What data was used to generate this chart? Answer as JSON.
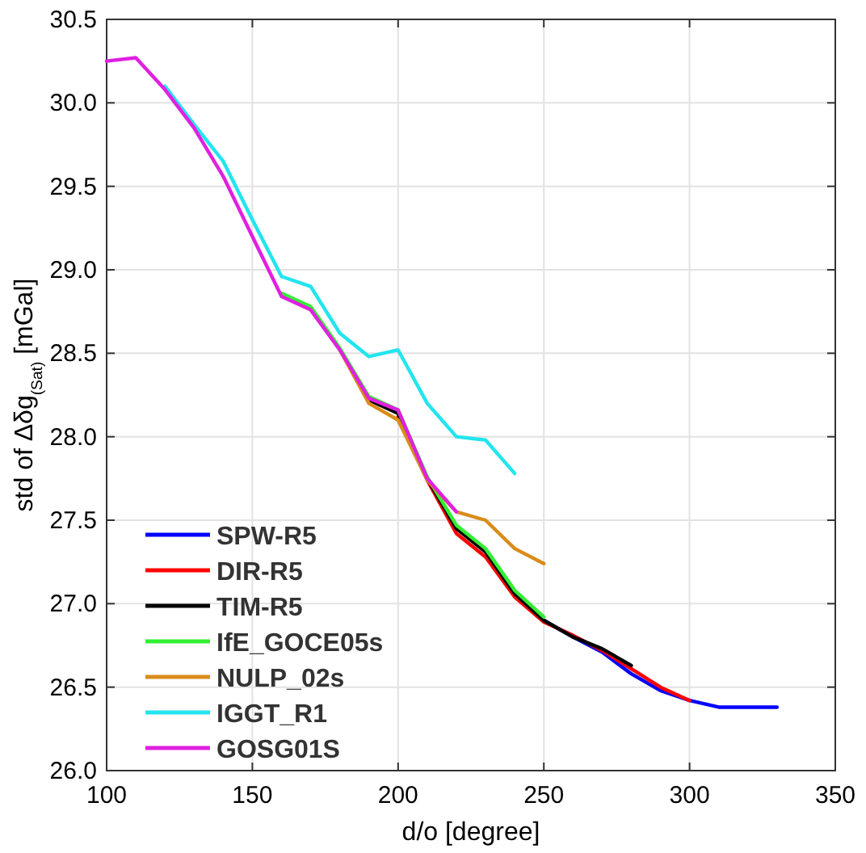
{
  "chart_data": {
    "type": "line",
    "xlabel": "d/o [degree]",
    "ylabel": "std of Δδg$_{(Sat)}$ [mGal]",
    "xlim": [
      100,
      350
    ],
    "ylim": [
      26,
      30.5
    ],
    "xticks": [
      100,
      150,
      200,
      250,
      300,
      350
    ],
    "yticks": [
      {
        "value": 26,
        "label": "26.0"
      },
      26.5,
      {
        "value": 27,
        "label": "27.0"
      },
      27.5,
      {
        "value": 28,
        "label": "28.0"
      },
      28.5,
      {
        "value": 29,
        "label": "29.0"
      },
      29.5,
      {
        "value": 30,
        "label": "30.0"
      },
      30.5
    ],
    "grid": true,
    "legend": "bottom left",
    "line_style": "solid",
    "marker": "none",
    "series": [
      {
        "name": "SPW-R5",
        "color": "#0000ff",
        "x": [
          250,
          260,
          270,
          280,
          290,
          300,
          310,
          320,
          330
        ],
        "values": [
          26.9,
          26.8,
          26.71,
          26.58,
          26.48,
          26.42,
          26.38,
          26.38,
          26.38
        ]
      },
      {
        "name": "DIR-R5",
        "color": "#ff0000",
        "x": [
          200,
          210,
          220,
          230,
          240,
          250,
          260,
          270,
          280,
          290,
          300
        ],
        "values": [
          28.12,
          27.74,
          27.42,
          27.28,
          27.04,
          26.89,
          26.81,
          26.72,
          26.61,
          26.5,
          26.42
        ]
      },
      {
        "name": "TIM-R5",
        "color": "#000000",
        "x": [
          190,
          200,
          210,
          220,
          230,
          240,
          250,
          260,
          270,
          280
        ],
        "values": [
          28.22,
          28.14,
          27.75,
          27.45,
          27.31,
          27.06,
          26.9,
          26.8,
          26.73,
          26.63
        ]
      },
      {
        "name": "IfE_GOCE05s",
        "color": "#33ee33",
        "x": [
          160,
          170,
          180,
          190,
          200,
          210,
          220,
          230,
          240,
          250
        ],
        "values": [
          28.86,
          28.78,
          28.53,
          28.24,
          28.16,
          27.76,
          27.47,
          27.33,
          27.08,
          26.92
        ]
      },
      {
        "name": "NULP_02s",
        "color": "#d98c1a",
        "x": [
          180,
          190,
          200,
          210,
          220,
          230,
          240,
          250
        ],
        "values": [
          28.52,
          28.2,
          28.1,
          27.74,
          27.55,
          27.5,
          27.33,
          27.24
        ]
      },
      {
        "name": "IGGT_R1",
        "color": "#22e5ee",
        "x": [
          120,
          130,
          140,
          150,
          160,
          170,
          180,
          190,
          200,
          210,
          220,
          230,
          240
        ],
        "values": [
          30.1,
          29.87,
          29.65,
          29.3,
          28.96,
          28.9,
          28.62,
          28.48,
          28.52,
          28.2,
          28.0,
          27.98,
          27.78
        ]
      },
      {
        "name": "GOSG01S",
        "color": "#e020e0",
        "x": [
          100,
          110,
          120,
          130,
          140,
          150,
          160,
          170,
          180,
          190,
          200,
          210,
          220
        ],
        "values": [
          30.25,
          30.27,
          30.08,
          29.85,
          29.56,
          29.2,
          28.84,
          28.76,
          28.52,
          28.23,
          28.16,
          27.75,
          27.55
        ]
      }
    ]
  }
}
